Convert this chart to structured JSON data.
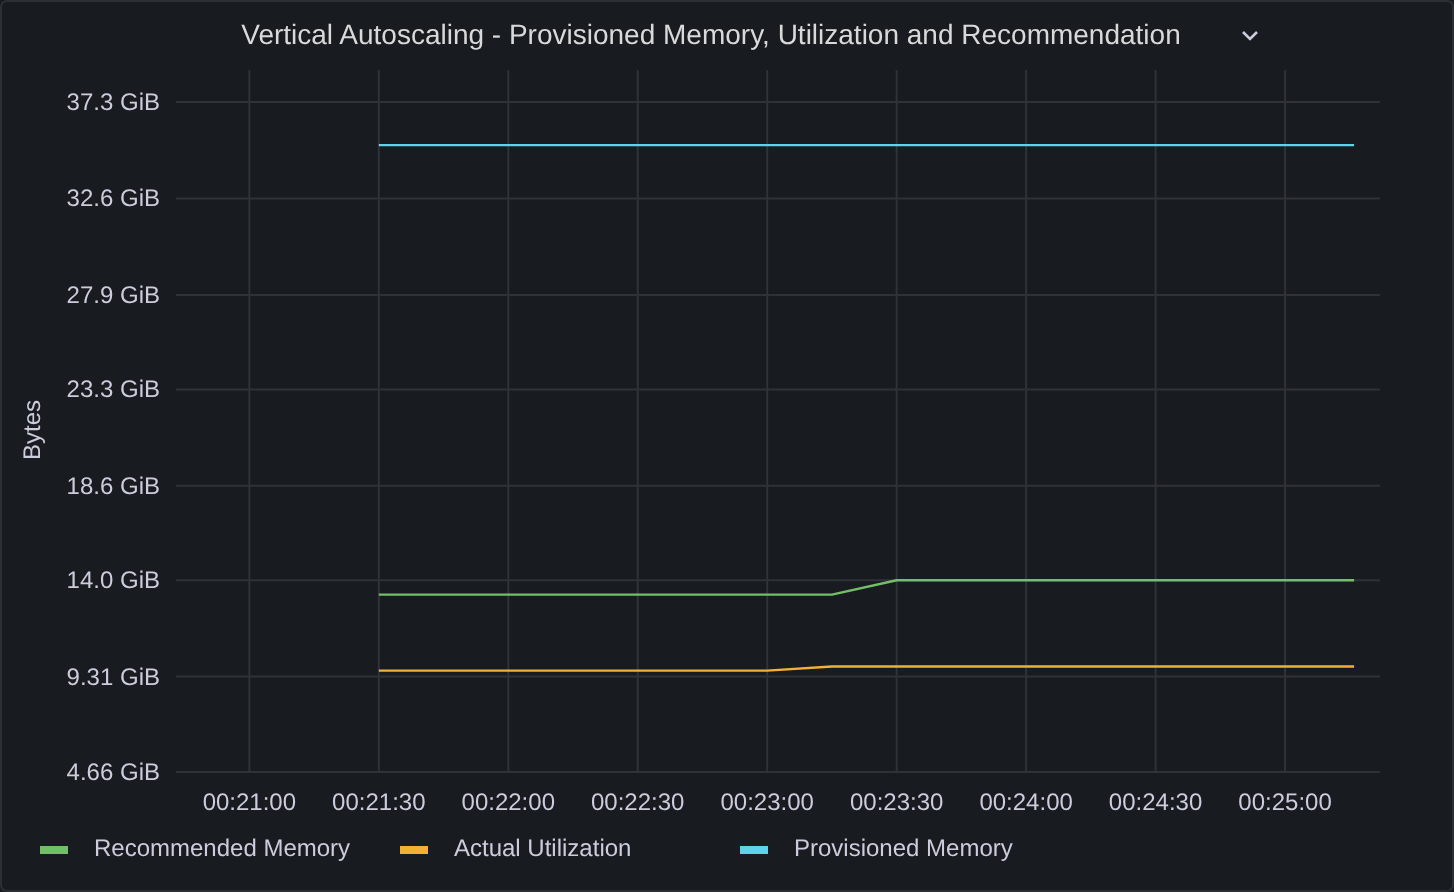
{
  "chart_data": {
    "type": "line",
    "title": "Vertical Autoscaling - Provisioned Memory, Utilization and Recommendation",
    "ylabel": "Bytes",
    "xlim": [
      0.345278,
      0.422778
    ],
    "xticks": [
      {
        "value": 0.35,
        "label": "00:21:00"
      },
      {
        "value": 0.358333,
        "label": "00:21:30"
      },
      {
        "value": 0.366667,
        "label": "00:22:00"
      },
      {
        "value": 0.375,
        "label": "00:22:30"
      },
      {
        "value": 0.383333,
        "label": "00:23:00"
      },
      {
        "value": 0.391667,
        "label": "00:23:30"
      },
      {
        "value": 0.4,
        "label": "00:24:00"
      },
      {
        "value": 0.408333,
        "label": "00:24:30"
      },
      {
        "value": 0.416667,
        "label": "00:25:00"
      }
    ],
    "ylim": [
      4.66,
      37.3
    ],
    "yticks": [
      {
        "value": 4.66,
        "label": "4.66 GiB"
      },
      {
        "value": 9.31,
        "label": "9.31 GiB"
      },
      {
        "value": 14.0,
        "label": "14.0 GiB"
      },
      {
        "value": 18.6,
        "label": "18.6 GiB"
      },
      {
        "value": 23.3,
        "label": "23.3 GiB"
      },
      {
        "value": 27.9,
        "label": "27.9 GiB"
      },
      {
        "value": 32.6,
        "label": "32.6 GiB"
      },
      {
        "value": 37.3,
        "label": "37.3 GiB"
      }
    ],
    "grid": true,
    "legend": "bottom",
    "marker": "none",
    "line_style": "solid",
    "series": [
      {
        "name": "Recommended Memory",
        "color": "#73bf69",
        "x": [
          0.358333,
          0.3875,
          0.391667,
          0.421111
        ],
        "values": [
          13.3,
          13.3,
          14.0,
          14.0
        ]
      },
      {
        "name": "Actual Utilization",
        "color": "#f2b035",
        "x": [
          0.358333,
          0.383333,
          0.3875,
          0.421111
        ],
        "values": [
          9.6,
          9.6,
          9.8,
          9.8
        ]
      },
      {
        "name": "Provisioned Memory",
        "color": "#5ed4e8",
        "x": [
          0.358333,
          0.421111
        ],
        "values": [
          35.2,
          35.2
        ]
      }
    ]
  }
}
